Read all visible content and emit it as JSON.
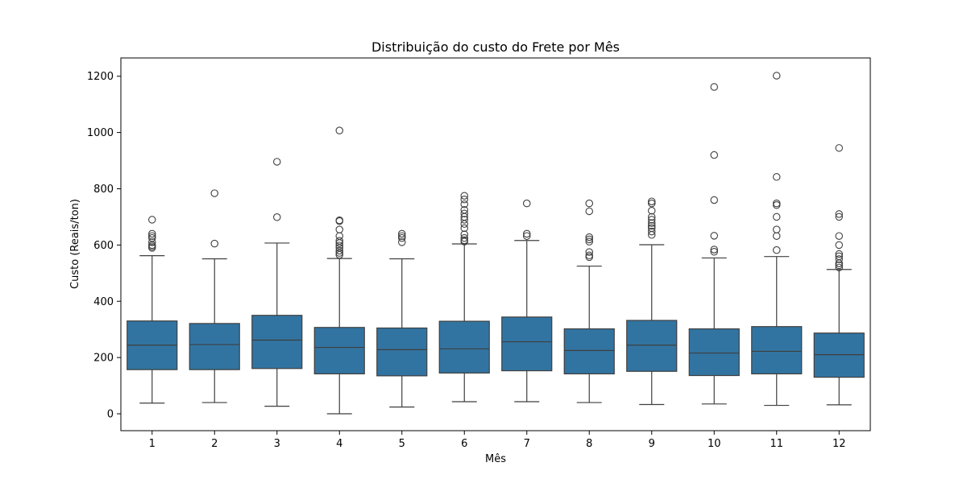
{
  "chart_data": {
    "type": "box",
    "title": "Distribuição do custo do Frete por Mês",
    "xlabel": "Mês",
    "ylabel": "Custo (Reais/ton)",
    "ylim": [
      -60,
      1265
    ],
    "yticks": [
      0,
      200,
      400,
      600,
      800,
      1000,
      1200
    ],
    "grid": false,
    "legend": "none",
    "box_color": "#3274a1",
    "categories": [
      "1",
      "2",
      "3",
      "4",
      "5",
      "6",
      "7",
      "8",
      "9",
      "10",
      "11",
      "12"
    ],
    "boxes": [
      {
        "month": "1",
        "whisker_low": 38,
        "q1": 157,
        "median": 244,
        "q3": 330,
        "whisker_high": 562,
        "outliers": [
          590,
          595,
          600,
          610,
          625,
          632,
          640,
          690
        ]
      },
      {
        "month": "2",
        "whisker_low": 40,
        "q1": 157,
        "median": 246,
        "q3": 321,
        "whisker_high": 551,
        "outliers": [
          605,
          784
        ]
      },
      {
        "month": "3",
        "whisker_low": 27,
        "q1": 161,
        "median": 262,
        "q3": 350,
        "whisker_high": 607,
        "outliers": [
          699,
          896
        ]
      },
      {
        "month": "4",
        "whisker_low": 0,
        "q1": 142,
        "median": 236,
        "q3": 307,
        "whisker_high": 552,
        "outliers": [
          565,
          572,
          580,
          590,
          598,
          607,
          615,
          632,
          655,
          685,
          688,
          1007
        ]
      },
      {
        "month": "5",
        "whisker_low": 24,
        "q1": 135,
        "median": 228,
        "q3": 305,
        "whisker_high": 551,
        "outliers": [
          610,
          625,
          632,
          640
        ]
      },
      {
        "month": "6",
        "whisker_low": 43,
        "q1": 145,
        "median": 231,
        "q3": 329,
        "whisker_high": 604,
        "outliers": [
          612,
          617,
          625,
          638,
          660,
          675,
          690,
          700,
          712,
          725,
          745,
          762,
          775
        ]
      },
      {
        "month": "7",
        "whisker_low": 43,
        "q1": 153,
        "median": 256,
        "q3": 344,
        "whisker_high": 616,
        "outliers": [
          632,
          640,
          748
        ]
      },
      {
        "month": "8",
        "whisker_low": 40,
        "q1": 142,
        "median": 225,
        "q3": 302,
        "whisker_high": 525,
        "outliers": [
          557,
          563,
          575,
          612,
          620,
          628,
          720,
          748
        ]
      },
      {
        "month": "9",
        "whisker_low": 33,
        "q1": 151,
        "median": 244,
        "q3": 332,
        "whisker_high": 601,
        "outliers": [
          636,
          648,
          660,
          668,
          678,
          690,
          700,
          722,
          748,
          755
        ]
      },
      {
        "month": "10",
        "whisker_low": 35,
        "q1": 136,
        "median": 216,
        "q3": 302,
        "whisker_high": 554,
        "outliers": [
          576,
          584,
          633,
          760,
          920,
          1162
        ]
      },
      {
        "month": "11",
        "whisker_low": 30,
        "q1": 142,
        "median": 222,
        "q3": 310,
        "whisker_high": 559,
        "outliers": [
          582,
          632,
          655,
          700,
          742,
          748,
          842,
          1202
        ]
      },
      {
        "month": "12",
        "whisker_low": 32,
        "q1": 130,
        "median": 210,
        "q3": 287,
        "whisker_high": 513,
        "outliers": [
          520,
          528,
          535,
          550,
          560,
          568,
          600,
          632,
          700,
          710,
          945
        ]
      }
    ]
  }
}
